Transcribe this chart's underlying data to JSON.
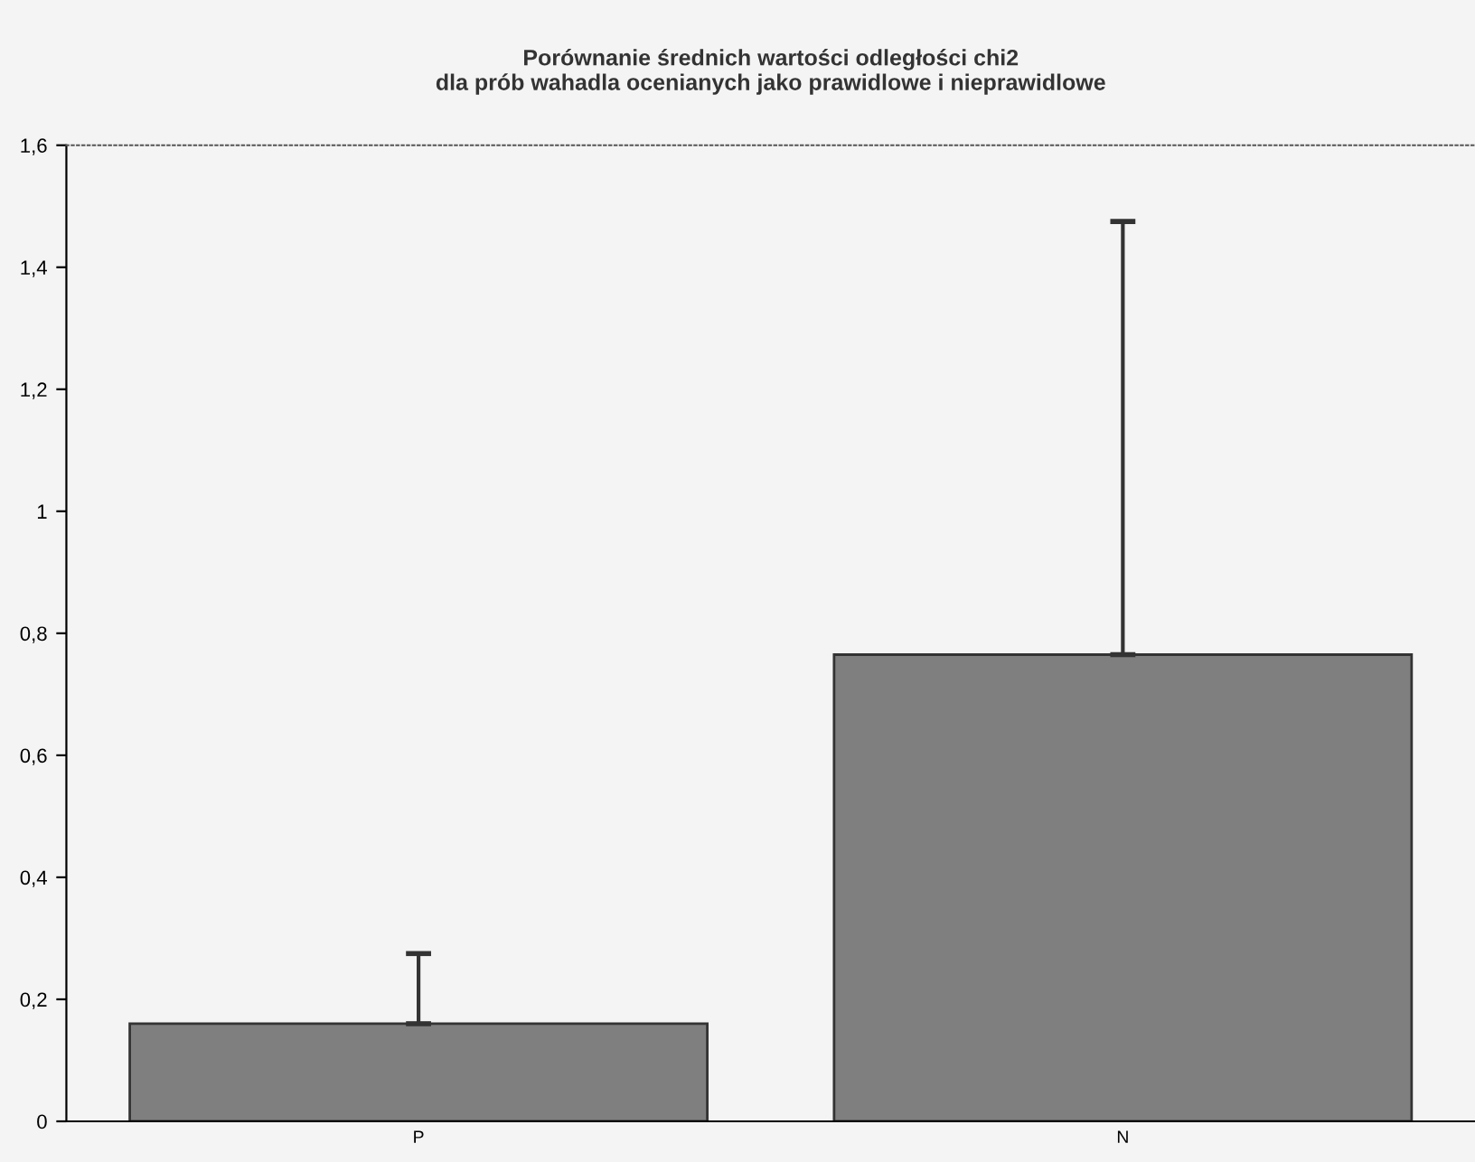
{
  "chart_data": {
    "type": "bar",
    "title": "Porównanie średnich wartości odległości chi2\ndla prób wahadla ocenianych jako prawidlowe i nieprawidlowe",
    "categories": [
      "P",
      "N"
    ],
    "values": [
      0.16,
      0.765
    ],
    "errors": [
      [
        0.16,
        0.275
      ],
      [
        0.765,
        1.475
      ]
    ],
    "color": "#7f7f7f",
    "ylim": [
      0,
      1.6
    ],
    "yticks": [
      {
        "value": 0,
        "label": "0"
      },
      {
        "value": 0.2,
        "label": "0,2"
      },
      {
        "value": 0.4,
        "label": "0,4"
      },
      {
        "value": 0.6,
        "label": "0,6"
      },
      {
        "value": 0.8,
        "label": "0,8"
      },
      {
        "value": 1,
        "label": "1"
      },
      {
        "value": 1.2,
        "label": "1,2"
      },
      {
        "value": 1.4,
        "label": "1,4"
      },
      {
        "value": 1.6,
        "label": "1,6"
      }
    ],
    "grid": false
  }
}
